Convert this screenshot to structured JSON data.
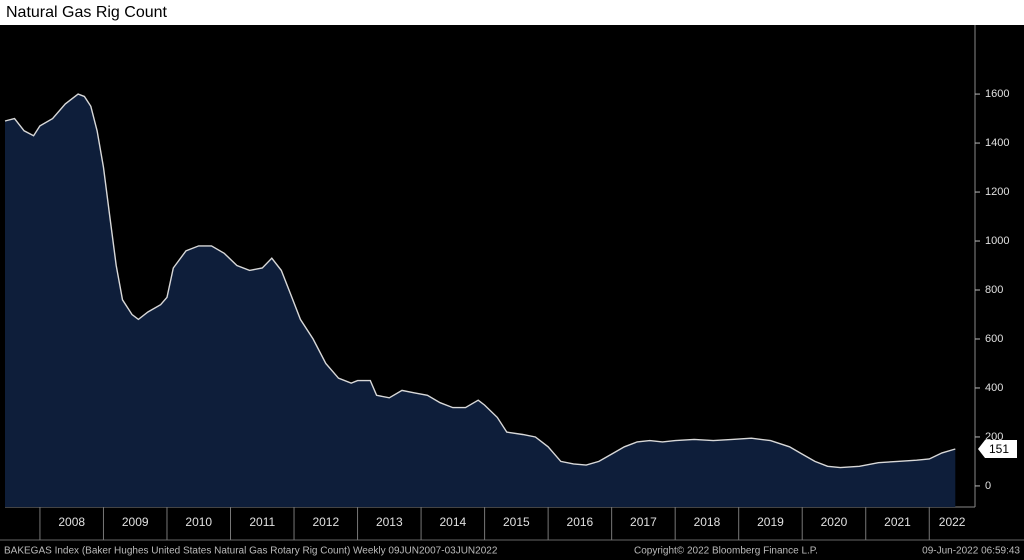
{
  "chart_data": {
    "type": "area",
    "title": "Natural Gas Rig Count",
    "footer": [
      "BAKEGAS Index (Baker Hughes United States Natural Gas Rotary Rig Count) Weekly 09JUN2007-03JUN2022",
      "Copyright© 2022 Bloomberg Finance L.P.",
      "09-Jun-2022 06:59:43"
    ],
    "color": "#0e1e3a",
    "line_color": "#d8d8d8",
    "x": [
      2007.45,
      2007.6,
      2007.75,
      2007.9,
      2008.0,
      2008.2,
      2008.4,
      2008.6,
      2008.7,
      2008.8,
      2008.9,
      2009.0,
      2009.1,
      2009.2,
      2009.3,
      2009.45,
      2009.55,
      2009.7,
      2009.9,
      2010.0,
      2010.1,
      2010.3,
      2010.5,
      2010.7,
      2010.9,
      2011.1,
      2011.3,
      2011.5,
      2011.65,
      2011.8,
      2011.95,
      2012.1,
      2012.3,
      2012.5,
      2012.7,
      2012.9,
      2013.0,
      2013.2,
      2013.3,
      2013.5,
      2013.7,
      2013.9,
      2014.1,
      2014.3,
      2014.5,
      2014.7,
      2014.9,
      2015.0,
      2015.2,
      2015.35,
      2015.6,
      2015.8,
      2016.0,
      2016.2,
      2016.4,
      2016.6,
      2016.8,
      2017.0,
      2017.2,
      2017.4,
      2017.6,
      2017.8,
      2018.0,
      2018.3,
      2018.6,
      2018.9,
      2019.2,
      2019.5,
      2019.8,
      2020.0,
      2020.2,
      2020.4,
      2020.6,
      2020.9,
      2021.2,
      2021.5,
      2021.8,
      2022.0,
      2022.2,
      2022.41
    ],
    "values": [
      1490,
      1500,
      1450,
      1430,
      1470,
      1500,
      1560,
      1600,
      1590,
      1550,
      1450,
      1300,
      1100,
      900,
      760,
      700,
      680,
      710,
      740,
      770,
      890,
      960,
      980,
      980,
      950,
      900,
      880,
      890,
      930,
      880,
      780,
      680,
      600,
      500,
      440,
      420,
      430,
      430,
      370,
      360,
      390,
      380,
      370,
      340,
      320,
      320,
      350,
      330,
      280,
      220,
      210,
      200,
      160,
      100,
      90,
      85,
      100,
      130,
      160,
      180,
      185,
      180,
      185,
      190,
      185,
      190,
      195,
      185,
      160,
      130,
      100,
      80,
      75,
      80,
      95,
      100,
      105,
      110,
      135,
      151
    ],
    "xlim": [
      2007.45,
      2022.72
    ],
    "xticks": [
      2008,
      2009,
      2010,
      2011,
      2012,
      2013,
      2014,
      2015,
      2016,
      2017,
      2018,
      2019,
      2020,
      2021,
      2022
    ],
    "ylim": [
      -86,
      1882
    ],
    "yticks": [
      0,
      200,
      400,
      600,
      800,
      1000,
      1200,
      1400,
      1600
    ]
  }
}
